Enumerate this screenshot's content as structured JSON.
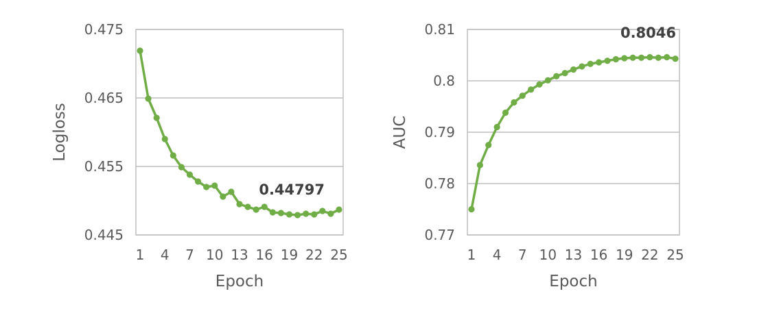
{
  "chart_data": [
    {
      "type": "line",
      "xlabel": "Epoch",
      "ylabel": "Logloss",
      "ylim": [
        0.445,
        0.475
      ],
      "x_tick_labels": [
        "1",
        "4",
        "7",
        "10",
        "13",
        "16",
        "19",
        "22",
        "25"
      ],
      "y_tick_labels": [
        "0.445",
        "0.455",
        "0.465",
        "0.475"
      ],
      "grid": true,
      "color": "#70ad47",
      "annotation": "0.44797",
      "series": [
        {
          "x": [
            1,
            2,
            3,
            4,
            5,
            6,
            7,
            8,
            9,
            10,
            11,
            12,
            13,
            14,
            15,
            16,
            17,
            18,
            19,
            20,
            21,
            22,
            23,
            24,
            25
          ],
          "values": [
            0.4719,
            0.4649,
            0.4621,
            0.459,
            0.4566,
            0.4549,
            0.4538,
            0.4528,
            0.452,
            0.4522,
            0.4506,
            0.4513,
            0.4495,
            0.4491,
            0.4487,
            0.4491,
            0.4483,
            0.4482,
            0.448,
            0.4479,
            0.4481,
            0.448,
            0.4485,
            0.4481,
            0.4487
          ]
        }
      ]
    },
    {
      "type": "line",
      "xlabel": "Epoch",
      "ylabel": "AUC",
      "ylim": [
        0.77,
        0.81
      ],
      "x_tick_labels": [
        "1",
        "4",
        "7",
        "10",
        "13",
        "16",
        "19",
        "22",
        "25"
      ],
      "y_tick_labels": [
        "0.77",
        "0.78",
        "0.79",
        "0.8",
        "0.81"
      ],
      "grid": true,
      "color": "#70ad47",
      "annotation": "0.8046",
      "series": [
        {
          "x": [
            1,
            2,
            3,
            4,
            5,
            6,
            7,
            8,
            9,
            10,
            11,
            12,
            13,
            14,
            15,
            16,
            17,
            18,
            19,
            20,
            21,
            22,
            23,
            24,
            25
          ],
          "values": [
            0.775,
            0.7836,
            0.7875,
            0.791,
            0.7938,
            0.7958,
            0.7971,
            0.7983,
            0.7993,
            0.8001,
            0.8009,
            0.8015,
            0.8022,
            0.8028,
            0.8033,
            0.8036,
            0.8039,
            0.8042,
            0.8044,
            0.8045,
            0.8045,
            0.8046,
            0.8045,
            0.8046,
            0.8043
          ]
        }
      ]
    }
  ]
}
